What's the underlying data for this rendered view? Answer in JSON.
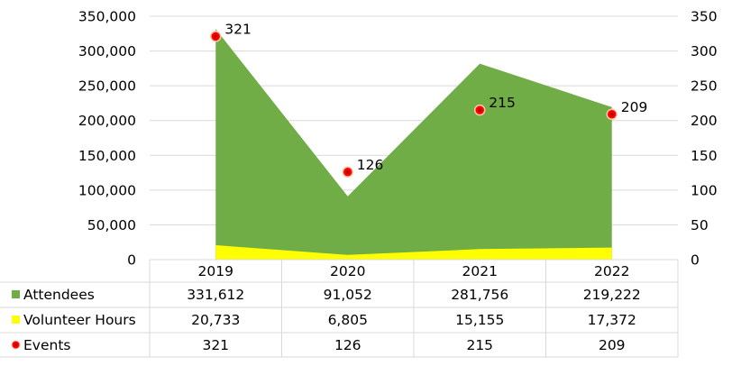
{
  "chart_data": {
    "type": "area",
    "categories": [
      "2019",
      "2020",
      "2021",
      "2022"
    ],
    "series": [
      {
        "name": "Attendees",
        "kind": "area",
        "axis": "left",
        "color": "#70AD47",
        "values": [
          331612,
          91052,
          281756,
          219222
        ],
        "display": [
          "331,612",
          "91,052",
          "281,756",
          "219,222"
        ]
      },
      {
        "name": "Volunteer Hours",
        "kind": "area",
        "axis": "left",
        "color": "#FFFF00",
        "values": [
          20733,
          6805,
          15155,
          17372
        ],
        "display": [
          "20,733",
          "6,805",
          "15,155",
          "17,372"
        ]
      },
      {
        "name": "Events",
        "kind": "marker",
        "axis": "right",
        "color": "#FF0000",
        "values": [
          321,
          126,
          215,
          209
        ],
        "display": [
          "321",
          "126",
          "215",
          "209"
        ]
      }
    ],
    "left_axis": {
      "ylim": [
        0,
        350000
      ],
      "ticks": [
        0,
        50000,
        100000,
        150000,
        200000,
        250000,
        300000,
        350000
      ],
      "tick_labels": [
        "0",
        "50,000",
        "100,000",
        "150,000",
        "200,000",
        "250,000",
        "300,000",
        "350,000"
      ]
    },
    "right_axis": {
      "ylim": [
        0,
        350
      ],
      "ticks": [
        0,
        50,
        100,
        150,
        200,
        250,
        300,
        350
      ],
      "tick_labels": [
        "0",
        "50",
        "100",
        "150",
        "200",
        "250",
        "300",
        "350"
      ]
    },
    "grid": true,
    "legend_placement": "data-table",
    "data_labels": [
      "321",
      "126",
      "215",
      "209"
    ]
  }
}
